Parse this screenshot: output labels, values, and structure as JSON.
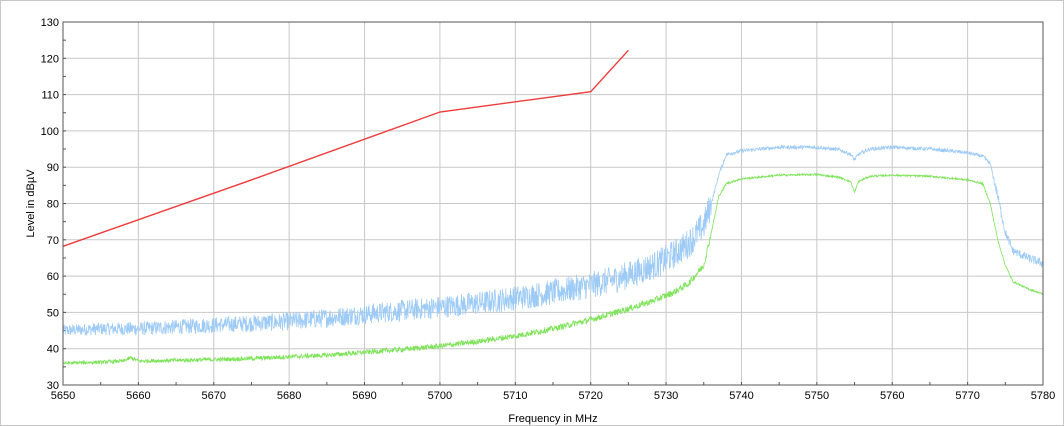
{
  "chart_data": {
    "type": "line",
    "title": "",
    "xlabel": "Frequency in MHz",
    "ylabel": "Level in dBµV",
    "xlim": [
      5650,
      5780
    ],
    "ylim": [
      30,
      130
    ],
    "x_ticks": [
      5650,
      5660,
      5670,
      5680,
      5690,
      5700,
      5710,
      5720,
      5730,
      5740,
      5750,
      5760,
      5770,
      5780
    ],
    "y_ticks": [
      30,
      40,
      50,
      60,
      70,
      80,
      90,
      100,
      110,
      120,
      130
    ],
    "grid": true,
    "legend": "none",
    "colors": {
      "limit": "#ef3b3b",
      "peak": "#9ecbf5",
      "average": "#7ee35a",
      "grid": "#c8c8c8",
      "frame": "#555555"
    },
    "series": [
      {
        "key": "limit",
        "x": [
          5650,
          5675,
          5700,
          5720,
          5725
        ],
        "y": [
          68.2,
          86.5,
          105.2,
          110.8,
          122.2
        ]
      },
      {
        "key": "peak",
        "x": [
          5650,
          5655,
          5660,
          5665,
          5670,
          5675,
          5680,
          5685,
          5690,
          5695,
          5700,
          5705,
          5710,
          5715,
          5720,
          5723,
          5726,
          5729,
          5731,
          5733,
          5735,
          5736,
          5737,
          5738,
          5740,
          5745,
          5750,
          5753,
          5754.5,
          5755,
          5755.5,
          5757,
          5760,
          5765,
          5770,
          5772,
          5773,
          5774,
          5775,
          5776,
          5778,
          5780
        ],
        "y": [
          45,
          45.5,
          45.5,
          46,
          46.5,
          47,
          47.5,
          48.5,
          49.5,
          50.5,
          51.5,
          52.5,
          54,
          55.5,
          57.5,
          59,
          61,
          63.5,
          66,
          69,
          74,
          80,
          88,
          93.5,
          94.5,
          95.5,
          95.5,
          94.8,
          93.5,
          92,
          93.5,
          95,
          95.5,
          95,
          94,
          93,
          91,
          82,
          72,
          67,
          65,
          63.5
        ]
      },
      {
        "key": "average",
        "x": [
          5650,
          5655,
          5658,
          5659,
          5660,
          5665,
          5670,
          5675,
          5680,
          5685,
          5690,
          5695,
          5700,
          5705,
          5710,
          5715,
          5720,
          5725,
          5728,
          5731,
          5733,
          5735,
          5736,
          5737,
          5738,
          5740,
          5745,
          5750,
          5753,
          5754.5,
          5755,
          5755.5,
          5757,
          5760,
          5765,
          5770,
          5772,
          5773,
          5774,
          5775,
          5776,
          5778,
          5780
        ],
        "y": [
          36,
          36.3,
          36.6,
          37.5,
          36.6,
          36.8,
          37,
          37.3,
          37.8,
          38.2,
          39,
          39.8,
          40.7,
          42,
          43.5,
          45.5,
          48,
          51,
          53,
          55.5,
          58,
          63,
          72,
          82,
          85.5,
          86.8,
          87.8,
          88,
          87.2,
          86,
          83,
          86,
          87.5,
          87.8,
          87.5,
          86.5,
          85.5,
          80,
          70,
          63,
          58.5,
          56.5,
          55
        ]
      }
    ]
  }
}
